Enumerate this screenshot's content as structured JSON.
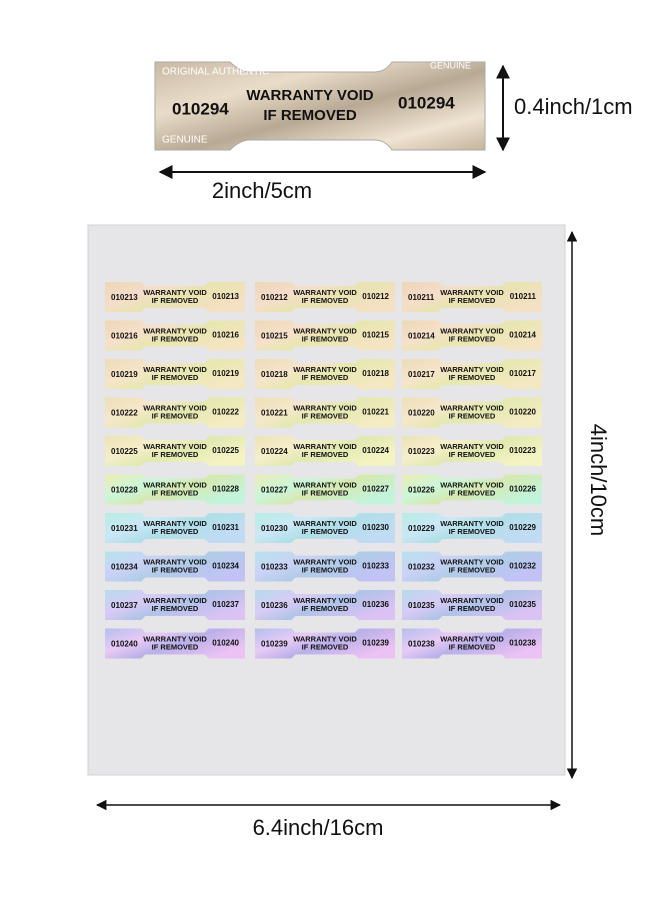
{
  "top_sticker": {
    "number_left": "010294",
    "number_right": "010294",
    "line1": "WARRANTY VOID",
    "line2": "IF REMOVED",
    "pattern_words": [
      "ORIGINAL",
      "AUTHENTIC",
      "GENUINE"
    ]
  },
  "dimensions": {
    "height": "0.4inch/1cm",
    "width": "2inch/5cm",
    "sheet_height": "4inch/10cm",
    "sheet_width": "6.4inch/16cm"
  },
  "sheet": {
    "line1": "WARRANTY VOID",
    "line2": "IF REMOVED",
    "rows": [
      [
        "010213",
        "010212",
        "010211"
      ],
      [
        "010216",
        "010215",
        "010214"
      ],
      [
        "010219",
        "010218",
        "010217"
      ],
      [
        "010222",
        "010221",
        "010220"
      ],
      [
        "010225",
        "010224",
        "010223"
      ],
      [
        "010228",
        "010227",
        "010226"
      ],
      [
        "010231",
        "010230",
        "010229"
      ],
      [
        "010234",
        "010233",
        "010232"
      ],
      [
        "010237",
        "010236",
        "010235"
      ],
      [
        "010240",
        "010239",
        "010238"
      ]
    ]
  }
}
